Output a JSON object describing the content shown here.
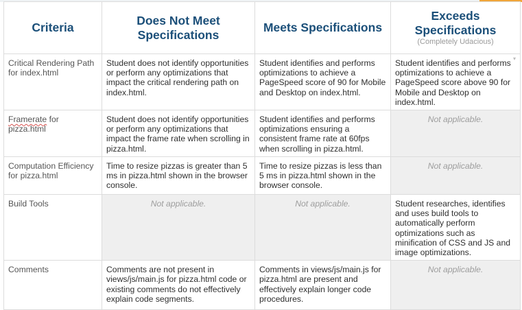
{
  "headers": {
    "criteria": "Criteria",
    "does_not_meet": "Does Not Meet Specifications",
    "meets": "Meets Specifications",
    "exceeds": "Exceeds Specifications",
    "exceeds_sub": "(Completely Udacious)"
  },
  "rows": [
    {
      "criteria": "Critical Rendering Path for index.html",
      "does_not_meet": "Student does not identify opportunities or perform any optimizations that impact the critical rendering path on index.html.",
      "meets": "Student identifies and performs optimizations to achieve a PageSpeed score of 90 for Mobile and Desktop on index.html.",
      "exceeds": "Student identifies and performs optimizations to achieve a PageSpeed score above 90 for Mobile and Desktop on index.html."
    },
    {
      "criteria_a": "Framerate",
      "criteria_b": " for pizza.html",
      "does_not_meet": "Student does not identify opportunities or perform any optimizations that impact the frame rate when scrolling in pizza.html.",
      "meets": "Student identifies and performs optimizations ensuring a consistent frame rate at 60fps when scrolling in pizza.html.",
      "exceeds": "Not applicable."
    },
    {
      "criteria": "Computation Efficiency for pizza.html",
      "does_not_meet": "Time to resize pizzas is greater than 5 ms in pizza.html shown in the browser console.",
      "meets": "Time to resize pizzas is less than 5 ms in pizza.html shown in the browser console.",
      "exceeds": "Not applicable."
    },
    {
      "criteria": "Build Tools",
      "does_not_meet": "Not applicable.",
      "meets": "Not applicable.",
      "exceeds": "Student researches, identifies and uses build tools to automatically perform optimizations such as minification of CSS and JS and image optimizations."
    },
    {
      "criteria": "Comments",
      "does_not_meet": "Comments are not present in views/js/main.js for pizza.html code or existing comments do not effectively explain code segments.",
      "meets": "Comments in views/js/main.js for pizza.html are present and effectively explain longer code procedures.",
      "exceeds": "Not applicable."
    }
  ],
  "colors": {
    "header_text": "#1b4f79",
    "na_background": "#efefef",
    "accent": "#f0a53a"
  }
}
